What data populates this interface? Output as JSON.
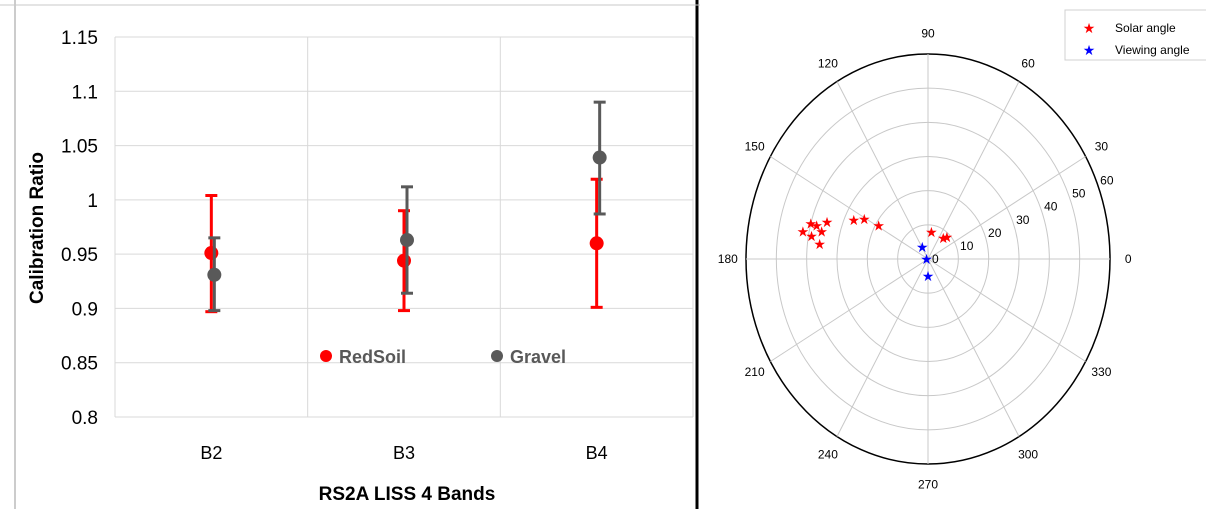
{
  "chart_data": [
    {
      "type": "scatter",
      "xlabel": "RS2A LISS 4 Bands",
      "ylabel": "Calibration Ratio",
      "categories": [
        "B2",
        "B3",
        "B4"
      ],
      "ylim": [
        0.8,
        1.15
      ],
      "yticks": [
        "0.8",
        "0.85",
        "0.9",
        "0.95",
        "1",
        "1.05",
        "1.1",
        "1.15"
      ],
      "grid": true,
      "legend": "inside-bottom-center",
      "series": [
        {
          "name": "RedSoil",
          "color": "#ff0000",
          "values": [
            0.951,
            0.944,
            0.96
          ],
          "err_low": [
            0.897,
            0.898,
            0.901
          ],
          "err_high": [
            1.004,
            0.99,
            1.019
          ]
        },
        {
          "name": "Gravel",
          "color": "#595959",
          "values": [
            0.931,
            0.963,
            1.039
          ],
          "err_low": [
            0.898,
            0.914,
            0.987
          ],
          "err_high": [
            0.965,
            1.012,
            1.09
          ]
        }
      ]
    },
    {
      "type": "scatter",
      "projection": "polar",
      "angle_ticks": [
        "0",
        "30",
        "60",
        "90",
        "120",
        "150",
        "180",
        "210",
        "240",
        "270",
        "300",
        "330"
      ],
      "radial_ticks": [
        "0",
        "10",
        "20",
        "30",
        "40",
        "50",
        "60"
      ],
      "rlim": [
        0,
        60
      ],
      "legend": "top-right",
      "series": [
        {
          "name": "Solar angle",
          "color": "#ff0000",
          "marker": "star",
          "points": [
            [
              169,
              42
            ],
            [
              170,
              39
            ],
            [
              165,
              40
            ],
            [
              165,
              38
            ],
            [
              167,
              36
            ],
            [
              173,
              36
            ],
            [
              162,
              35
            ],
            [
              155,
              27
            ],
            [
              151,
              24
            ],
            [
              149,
              19
            ],
            [
              82,
              8
            ],
            [
              51,
              8
            ],
            [
              46,
              9
            ]
          ]
        },
        {
          "name": "Viewing angle",
          "color": "#0000ff",
          "marker": "star",
          "points": [
            [
              118,
              4
            ],
            [
              180,
              0.5
            ],
            [
              270,
              5
            ]
          ]
        }
      ]
    }
  ]
}
